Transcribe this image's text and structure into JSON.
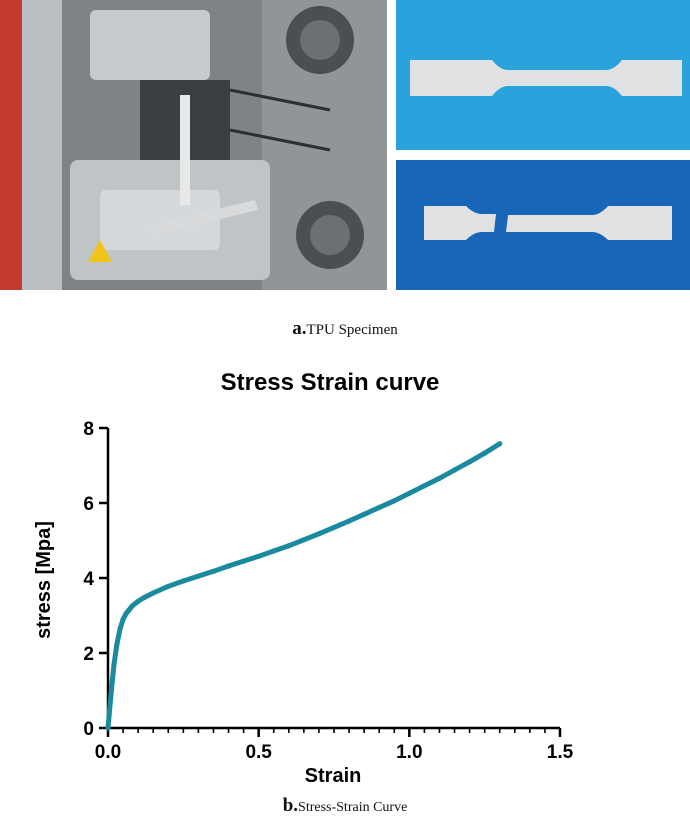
{
  "captions": {
    "a_letter": "a.",
    "a_text": "TPU Specimen",
    "b_letter": "b.",
    "b_text": "Stress-Strain Curve"
  },
  "colors": {
    "series": "#1a8a9e",
    "specimen_background_top": "#2aa3dc",
    "specimen_background_bottom": "#1866b8"
  },
  "chart_data": {
    "type": "scatter",
    "title": "Stress Strain curve",
    "xlabel": "Strain",
    "ylabel": "stress [Mpa]",
    "xlim": [
      0,
      1.5
    ],
    "ylim": [
      0,
      8
    ],
    "xticks": [
      0.0,
      0.5,
      1.0,
      1.5
    ],
    "xtick_labels": [
      "0.0",
      "0.5",
      "1.0",
      "1.5"
    ],
    "yticks": [
      0,
      2,
      4,
      6,
      8
    ],
    "ytick_labels": [
      "0",
      "2",
      "4",
      "6",
      "8"
    ],
    "grid": false,
    "series": [
      {
        "x": [
          0,
          0.005,
          0.01,
          0.015,
          0.02,
          0.03,
          0.04,
          0.05,
          0.06,
          0.07,
          0.08,
          0.1,
          0.12,
          0.15,
          0.2,
          0.25,
          0.3,
          0.35,
          0.4,
          0.45,
          0.5,
          0.55,
          0.6,
          0.65,
          0.7,
          0.75,
          0.8,
          0.85,
          0.9,
          0.95,
          1.0,
          1.05,
          1.1,
          1.15,
          1.2,
          1.25,
          1.3
        ],
        "y": [
          0,
          0.45,
          0.9,
          1.3,
          1.7,
          2.25,
          2.65,
          2.9,
          3.05,
          3.15,
          3.25,
          3.38,
          3.48,
          3.6,
          3.78,
          3.92,
          4.05,
          4.18,
          4.32,
          4.45,
          4.58,
          4.72,
          4.86,
          5.02,
          5.18,
          5.35,
          5.52,
          5.7,
          5.88,
          6.06,
          6.26,
          6.46,
          6.66,
          6.88,
          7.1,
          7.33,
          7.58
        ]
      }
    ]
  }
}
